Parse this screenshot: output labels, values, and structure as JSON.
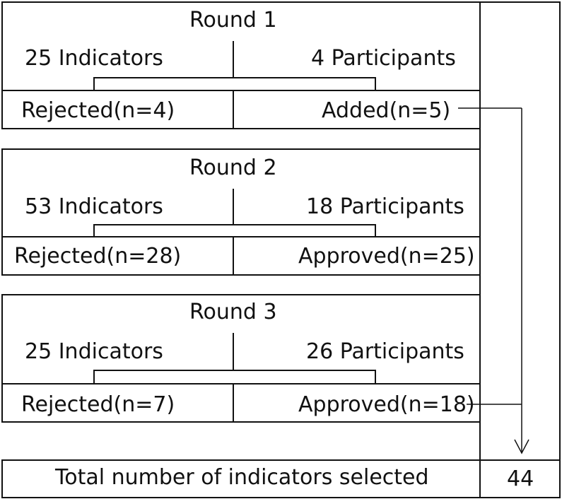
{
  "rounds": [
    {
      "title": "Round 1",
      "indicators": "25 Indicators",
      "participants": "4 Participants",
      "left_outcome": "Rejected(n=4)",
      "right_outcome": "Added(n=5)"
    },
    {
      "title": "Round 2",
      "indicators": "53 Indicators",
      "participants": "18 Participants",
      "left_outcome": "Rejected(n=28)",
      "right_outcome": "Approved(n=25)"
    },
    {
      "title": "Round 3",
      "indicators": "25 Indicators",
      "participants": "26 Participants",
      "left_outcome": "Rejected(n=7)",
      "right_outcome": "Approved(n=18)"
    }
  ],
  "total": {
    "label": "Total number of indicators selected",
    "value": "44"
  }
}
